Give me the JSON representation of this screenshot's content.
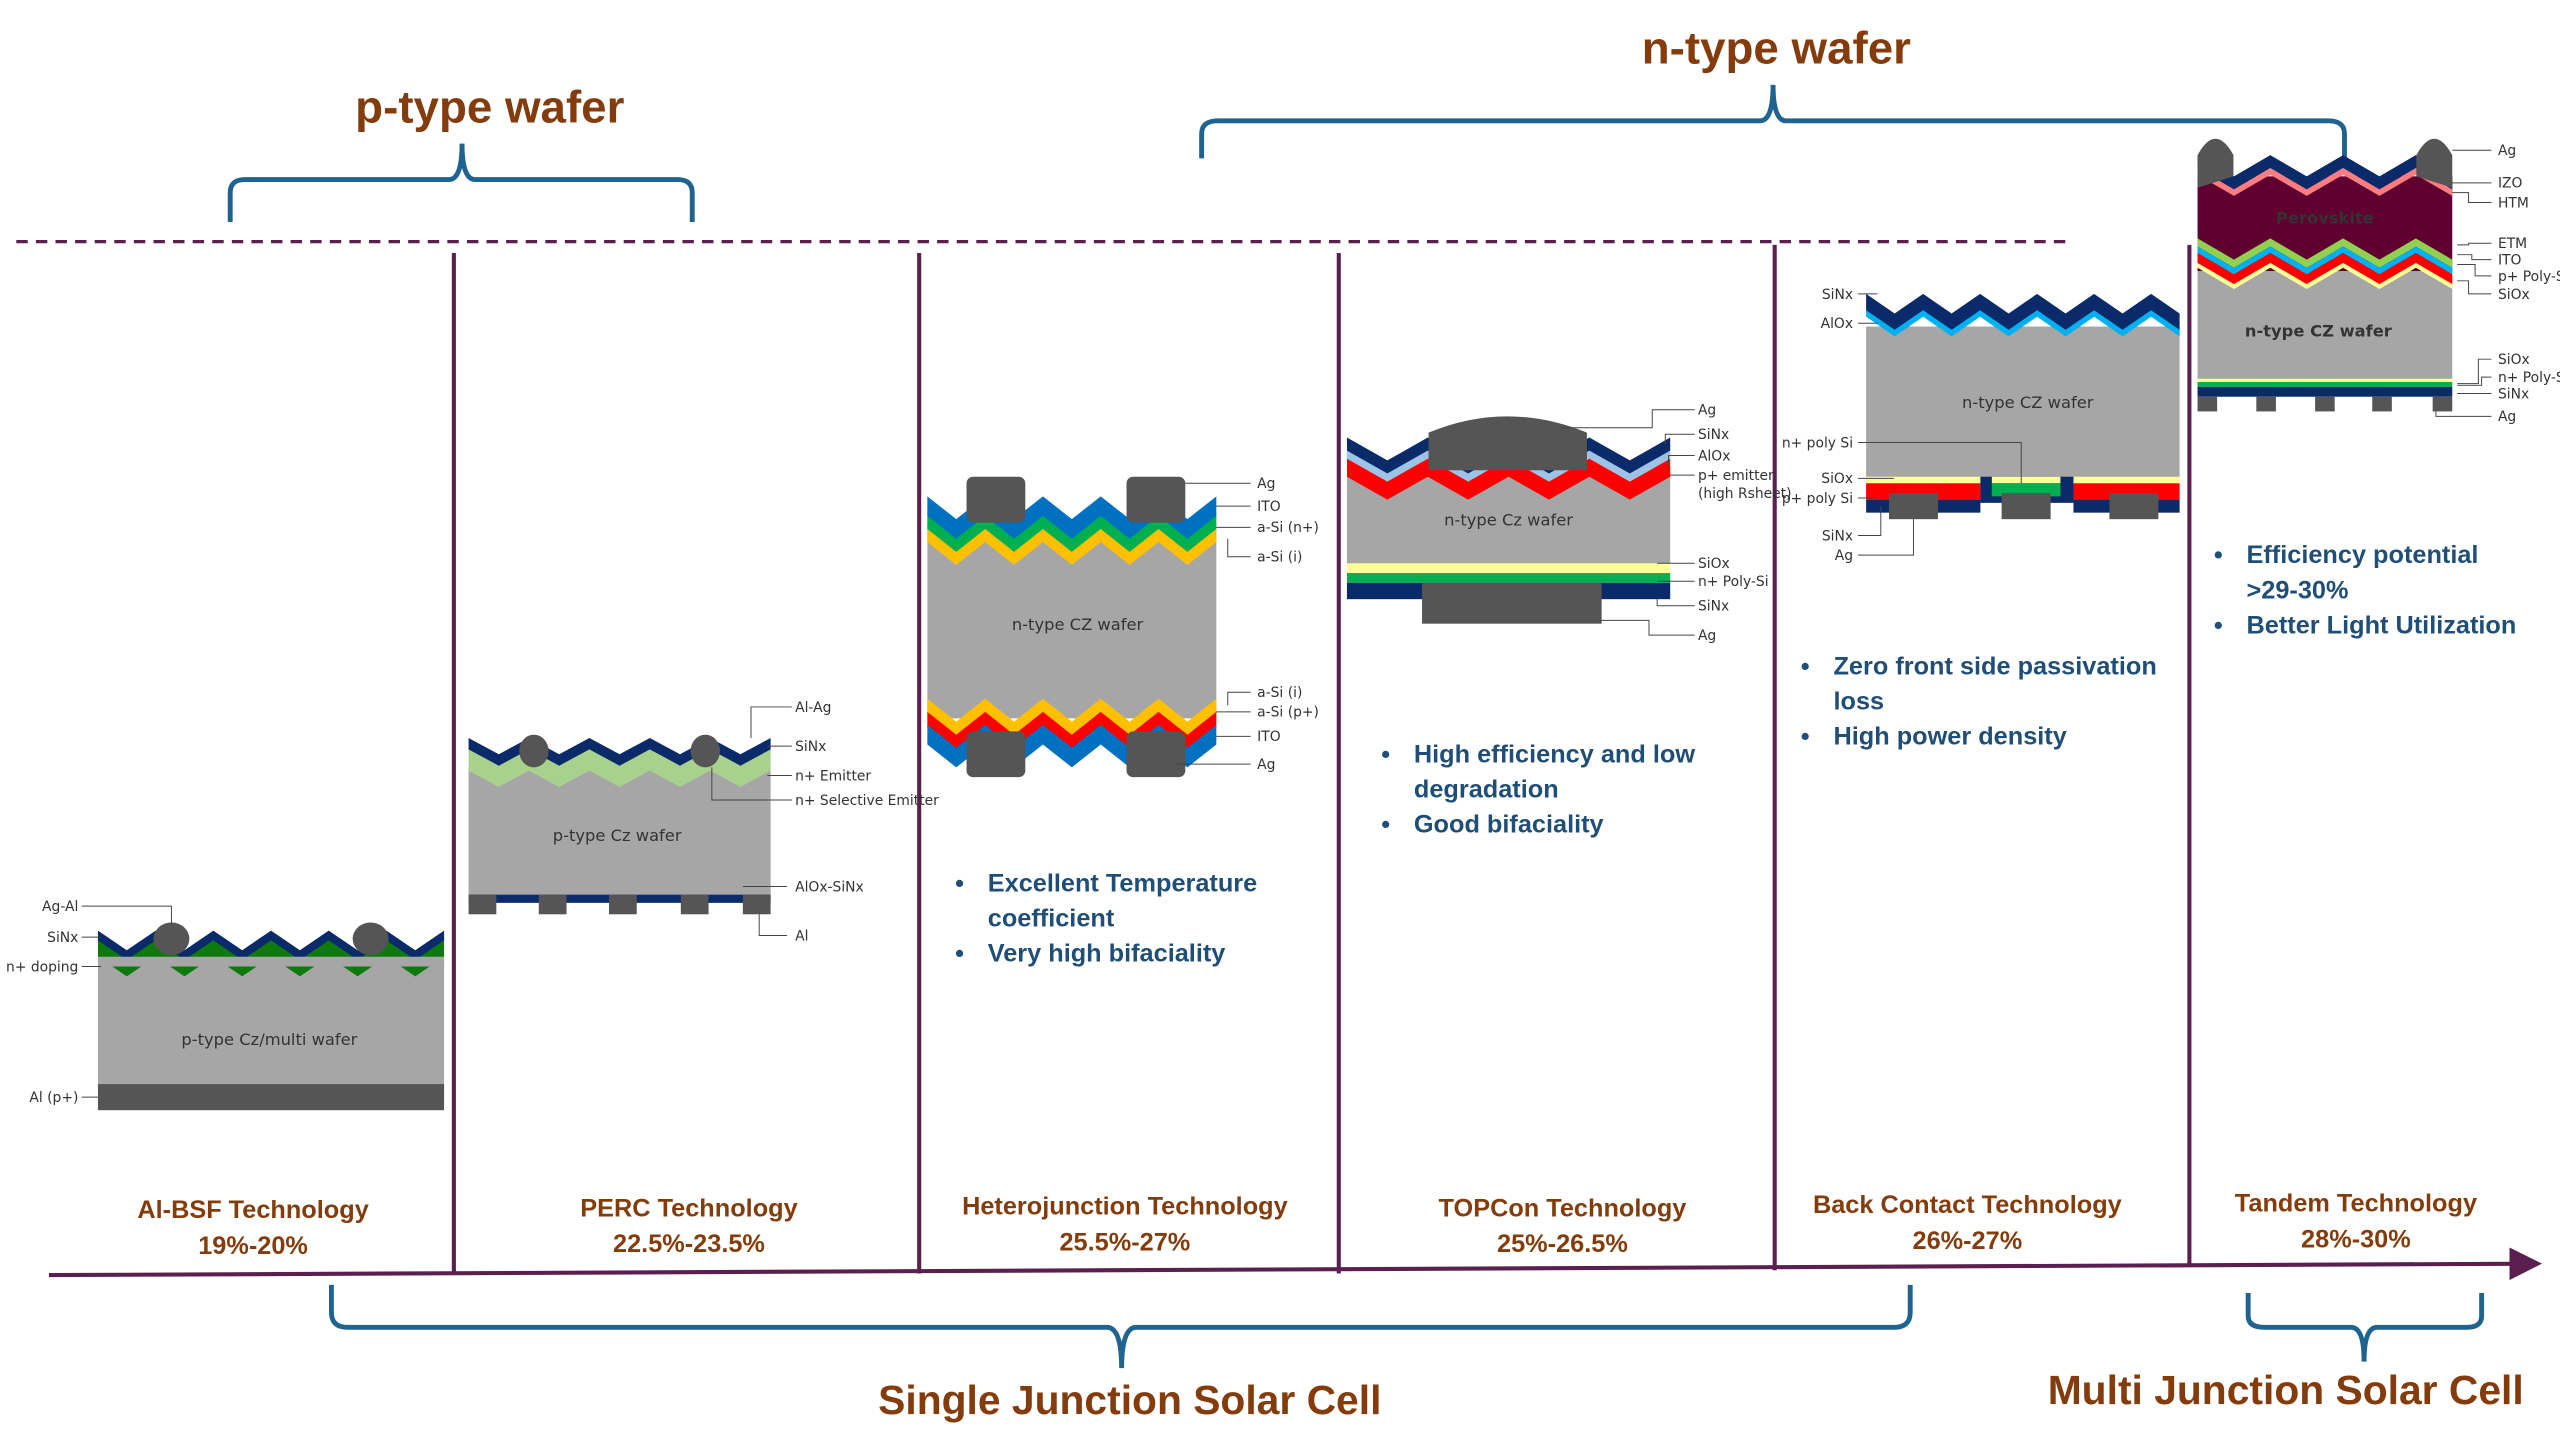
{
  "headers": {
    "p_type": "p-type wafer",
    "n_type": "n-type wafer"
  },
  "footers": {
    "single": "Single Junction Solar Cell",
    "multi": "Multi Junction Solar Cell"
  },
  "colors": {
    "title_brown": "#843c0c",
    "bullet_blue": "#1f4e79",
    "brace_blue": "#1f6391",
    "divider_purple": "#5b1f4f"
  },
  "cells": [
    {
      "name": "Al-BSF Technology",
      "efficiency": "19%-20%",
      "wafer": "p-type Cz/multi wafer",
      "layers": [
        "Ag-Al",
        "SiNx",
        "n+ doping",
        "Al (p+)"
      ],
      "bullets": []
    },
    {
      "name": "PERC Technology",
      "efficiency": "22.5%-23.5%",
      "wafer": "p-type Cz wafer",
      "layers": [
        "Al-Ag",
        "SiNx",
        "n+ Emitter",
        "n+ Selective Emitter",
        "AlOx-SiNx",
        "Al"
      ],
      "bullets": []
    },
    {
      "name": "Heterojunction Technology",
      "efficiency": "25.5%-27%",
      "wafer": "n-type CZ wafer",
      "layers": [
        "Ag",
        "ITO",
        "a-Si (n+)",
        "a-Si (i)",
        "a-Si (i)",
        "a-Si (p+)",
        "ITO",
        "Ag"
      ],
      "bullets": [
        [
          "Excellent Temperature",
          "coefficient"
        ],
        [
          "Very high bifaciality"
        ]
      ]
    },
    {
      "name": "TOPCon Technology",
      "efficiency": "25%-26.5%",
      "wafer": "n-type Cz wafer",
      "layers": [
        "Ag",
        "SiNx",
        "AlOx",
        "p+ emitter",
        "(high Rsheet)",
        "SiOx",
        "n+ Poly-Si",
        "SiNx",
        "Ag"
      ],
      "bullets": [
        [
          "High efficiency and low",
          "degradation"
        ],
        [
          "Good bifaciality"
        ]
      ]
    },
    {
      "name": "Back Contact Technology",
      "efficiency": "26%-27%",
      "wafer": "n-type CZ wafer",
      "layers": [
        "SiNx",
        "AlOx",
        "n+ poly Si",
        "SiOx",
        "p+ poly Si",
        "SiNx",
        "Ag"
      ],
      "bullets": [
        [
          "Zero front side passivation",
          "loss"
        ],
        [
          "High power density"
        ]
      ]
    },
    {
      "name": "Tandem Technology",
      "efficiency": "28%-30%",
      "wafer": "n-type CZ wafer",
      "top_absorber": "Perovskite",
      "layers": [
        "Ag",
        "IZO",
        "HTM",
        "ETM",
        "ITO",
        "p+ Poly-Si",
        "SiOx",
        "SiOx",
        "n+ Poly-Si",
        "SiNx",
        "Ag"
      ],
      "bullets": [
        [
          "Efficiency potential",
          ">29-30%"
        ],
        [
          "Better Light Utilization"
        ]
      ]
    }
  ]
}
